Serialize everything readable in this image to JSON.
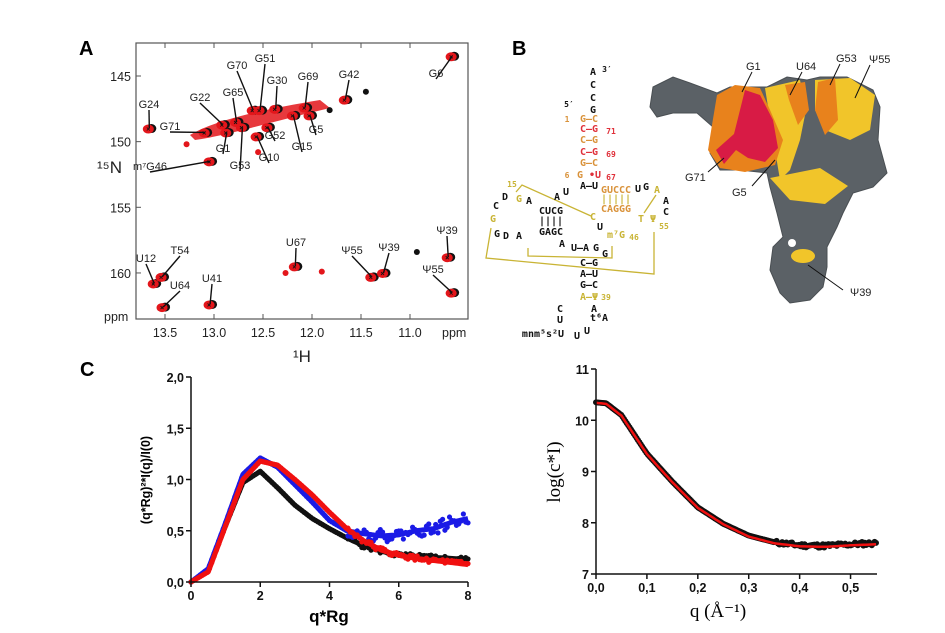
{
  "panel_labels": {
    "a": "A",
    "b": "B",
    "c": "C"
  },
  "colors": {
    "nmr_red": "#e3161b",
    "nmr_black": "#111111",
    "blue": "#1a1ae6",
    "red": "#f01010",
    "black": "#111111",
    "gold": "#c9b435",
    "orange": "#d9923a",
    "crimson": "#e0303a",
    "surface_grey": "#5b6166",
    "surface_orange": "#e8821c",
    "surface_red": "#d81b45",
    "surface_yellow": "#f1c52a"
  },
  "chart_data": [
    {
      "type": "scatter",
      "title": "",
      "xlabel": "¹H",
      "ylabel": "¹⁵N",
      "x_unit": "ppm",
      "y_unit": "ppm",
      "xlim": [
        13.8,
        10.4
      ],
      "ylim": [
        142.4,
        163.6
      ],
      "xticks": [
        "13.5",
        "13.0",
        "12.5",
        "12.0",
        "11.5",
        "11.0"
      ],
      "yticks": [
        "145",
        "150",
        "155",
        "160"
      ],
      "peaks": [
        {
          "label": "G6",
          "h": 10.57,
          "n": 143.5
        },
        {
          "label": "G24",
          "h": 13.66,
          "n": 149.0
        },
        {
          "label": "G71",
          "h": 13.09,
          "n": 149.3
        },
        {
          "label": "m⁷G46",
          "h": 13.04,
          "n": 151.5
        },
        {
          "label": "G1",
          "h": 12.87,
          "n": 149.3
        },
        {
          "label": "G22",
          "h": 12.91,
          "n": 148.7
        },
        {
          "label": "G65",
          "h": 12.77,
          "n": 148.5
        },
        {
          "label": "G70",
          "h": 12.6,
          "n": 147.6
        },
        {
          "label": "G51",
          "h": 12.53,
          "n": 147.6
        },
        {
          "label": "G53",
          "h": 12.71,
          "n": 148.9
        },
        {
          "label": "G30",
          "h": 12.37,
          "n": 147.5
        },
        {
          "label": "G52",
          "h": 12.45,
          "n": 148.9
        },
        {
          "label": "G10",
          "h": 12.56,
          "n": 149.6
        },
        {
          "label": "G69",
          "h": 12.07,
          "n": 147.4
        },
        {
          "label": "G42",
          "h": 11.66,
          "n": 146.8
        },
        {
          "label": "G5",
          "h": 12.02,
          "n": 148.0
        },
        {
          "label": "G15",
          "h": 12.19,
          "n": 148.0
        },
        {
          "label": "U12",
          "h": 13.61,
          "n": 160.8
        },
        {
          "label": "T54",
          "h": 13.53,
          "n": 160.3
        },
        {
          "label": "U64",
          "h": 13.52,
          "n": 162.6
        },
        {
          "label": "U41",
          "h": 13.04,
          "n": 162.4
        },
        {
          "label": "U67",
          "h": 12.17,
          "n": 159.5
        },
        {
          "label": "Ψ55",
          "h": 11.39,
          "n": 160.3
        },
        {
          "label": "Ψ39",
          "h": 11.27,
          "n": 160.0
        },
        {
          "label": "Ψ39",
          "h": 10.61,
          "n": 158.8
        },
        {
          "label": "Ψ55",
          "h": 10.57,
          "n": 161.5
        }
      ]
    },
    {
      "type": "scatter",
      "title": "",
      "xlabel": "q*Rg",
      "ylabel": "(q*Rg)²*I(q)/I(0)",
      "xlim": [
        0,
        8
      ],
      "ylim": [
        0,
        2
      ],
      "xticks": [
        "0",
        "2",
        "4",
        "6",
        "8"
      ],
      "yticks": [
        "0,0",
        "0,5",
        "1,0",
        "1,5",
        "2,0"
      ],
      "x": [
        0,
        0.5,
        1,
        1.5,
        2,
        2.5,
        3,
        3.5,
        4,
        4.5,
        5,
        5.5,
        6,
        6.5,
        7,
        7.5,
        8
      ],
      "series": [
        {
          "name": "black",
          "values": [
            0,
            0.12,
            0.55,
            0.97,
            1.08,
            0.92,
            0.75,
            0.62,
            0.52,
            0.43,
            0.35,
            0.3,
            0.26,
            0.25,
            0.24,
            0.23,
            0.22
          ]
        },
        {
          "name": "blue",
          "values": [
            0,
            0.13,
            0.58,
            1.05,
            1.21,
            1.12,
            0.95,
            0.78,
            0.6,
            0.5,
            0.47,
            0.45,
            0.46,
            0.5,
            0.52,
            0.58,
            0.62
          ]
        },
        {
          "name": "red",
          "values": [
            0,
            0.1,
            0.55,
            1.0,
            1.18,
            1.14,
            1.0,
            0.85,
            0.68,
            0.52,
            0.4,
            0.31,
            0.26,
            0.23,
            0.21,
            0.19,
            0.17
          ]
        }
      ]
    },
    {
      "type": "line",
      "title": "",
      "xlabel": "q (Å⁻¹)",
      "ylabel": "log(c*I)",
      "xlim": [
        0,
        0.55
      ],
      "ylim": [
        7,
        11
      ],
      "xticks": [
        "0,0",
        "0,1",
        "0,2",
        "0,3",
        "0,4",
        "0,5"
      ],
      "yticks": [
        "7",
        "8",
        "9",
        "10",
        "11"
      ],
      "x": [
        0,
        0.02,
        0.05,
        0.08,
        0.1,
        0.15,
        0.2,
        0.25,
        0.3,
        0.35,
        0.4,
        0.45,
        0.5,
        0.55
      ],
      "series": [
        {
          "name": "data",
          "values": [
            10.35,
            10.33,
            10.1,
            9.65,
            9.35,
            8.8,
            8.3,
            7.98,
            7.75,
            7.62,
            7.56,
            7.55,
            7.58,
            7.6
          ]
        },
        {
          "name": "fit",
          "values": [
            10.34,
            10.32,
            10.09,
            9.64,
            9.34,
            8.79,
            8.29,
            7.97,
            7.73,
            7.6,
            7.54,
            7.53,
            7.56,
            7.58
          ]
        }
      ]
    }
  ],
  "secondary_structure": {
    "tokens": [
      {
        "t": "A",
        "c": "k"
      },
      {
        "t": "3′",
        "c": "k"
      },
      {
        "t": "C",
        "c": "k"
      },
      {
        "t": "C",
        "c": "k"
      },
      {
        "t": "G",
        "c": "k"
      },
      {
        "t": "5′",
        "c": "k"
      },
      {
        "t": "1",
        "c": "o"
      },
      {
        "t": "G–C",
        "c": "o"
      },
      {
        "t": "C–G",
        "c": "r"
      },
      {
        "t": "71",
        "c": "r"
      },
      {
        "t": "C–G",
        "c": "o"
      },
      {
        "t": "C–G",
        "c": "r"
      },
      {
        "t": "69",
        "c": "r"
      },
      {
        "t": "G–C",
        "c": "o"
      },
      {
        "t": "6",
        "c": "o"
      },
      {
        "t": "G",
        "c": "o"
      },
      {
        "t": "•U",
        "c": "r"
      },
      {
        "t": "67",
        "c": "r"
      },
      {
        "t": "A–U",
        "c": "k"
      },
      {
        "t": "A",
        "c": "k"
      },
      {
        "t": "U",
        "c": "k"
      },
      {
        "t": "15",
        "c": "g"
      },
      {
        "t": "G",
        "c": "g"
      },
      {
        "t": "A",
        "c": "k"
      },
      {
        "t": "D",
        "c": "k"
      },
      {
        "t": "C",
        "c": "k"
      },
      {
        "t": "G",
        "c": "g"
      },
      {
        "t": "G",
        "c": "k"
      },
      {
        "t": "D",
        "c": "k"
      },
      {
        "t": "A",
        "c": "k"
      },
      {
        "t": "CUCG",
        "c": "k"
      },
      {
        "t": "||||",
        "c": "k"
      },
      {
        "t": "GAGC",
        "c": "k"
      },
      {
        "t": "A",
        "c": "k"
      },
      {
        "t": "C",
        "c": "g"
      },
      {
        "t": "U",
        "c": "k"
      },
      {
        "t": "m⁷G",
        "c": "g"
      },
      {
        "t": "46",
        "c": "g"
      },
      {
        "t": "U–A",
        "c": "k"
      },
      {
        "t": "G",
        "c": "k"
      },
      {
        "t": "G",
        "c": "k"
      },
      {
        "t": "C–G",
        "c": "k"
      },
      {
        "t": "A–U",
        "c": "k"
      },
      {
        "t": "G–C",
        "c": "k"
      },
      {
        "t": "A–Ψ",
        "c": "g"
      },
      {
        "t": "39",
        "c": "g"
      },
      {
        "t": "C",
        "c": "k"
      },
      {
        "t": "A",
        "c": "k"
      },
      {
        "t": "U",
        "c": "k"
      },
      {
        "t": "t⁶A",
        "c": "k"
      },
      {
        "t": "mnm⁵s²U",
        "c": "k"
      },
      {
        "t": "U",
        "c": "k"
      },
      {
        "t": "U",
        "c": "k"
      },
      {
        "t": "GUCCC",
        "c": "o"
      },
      {
        "t": "|||||",
        "c": "g"
      },
      {
        "t": "CAGGG",
        "c": "o"
      },
      {
        "t": "U",
        "c": "k"
      },
      {
        "t": "G",
        "c": "k"
      },
      {
        "t": "A",
        "c": "g"
      },
      {
        "t": "A",
        "c": "k"
      },
      {
        "t": "C",
        "c": "k"
      },
      {
        "t": "T",
        "c": "g"
      },
      {
        "t": "Ψ",
        "c": "g"
      },
      {
        "t": "55",
        "c": "g"
      }
    ]
  },
  "structure_3d": {
    "labels": [
      "G1",
      "U64",
      "G53",
      "Ψ55",
      "G71",
      "G5",
      "Ψ39"
    ]
  }
}
